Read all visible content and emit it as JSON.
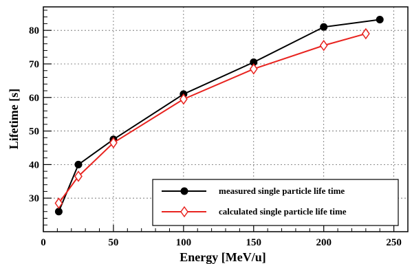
{
  "chart_data": {
    "type": "line",
    "xlabel": "Energy [MeV/u]",
    "ylabel": "Lifetime [s]",
    "xlim": [
      0,
      260
    ],
    "ylim": [
      20,
      87
    ],
    "xticks": [
      0,
      50,
      100,
      150,
      200,
      250
    ],
    "yticks": [
      30,
      40,
      50,
      60,
      70,
      80
    ],
    "grid": true,
    "legend_position": "bottom-right",
    "series": [
      {
        "name": "measured single particle life time",
        "color": "#000000",
        "marker": "filled-circle",
        "x": [
          11,
          25,
          50,
          100,
          150,
          200,
          240
        ],
        "y": [
          26,
          40,
          47.5,
          61,
          70.5,
          81,
          83.2
        ]
      },
      {
        "name": "calculated single particle life time",
        "color": "#e8231f",
        "marker": "open-diamond",
        "x": [
          11,
          25,
          50,
          100,
          150,
          200,
          230
        ],
        "y": [
          28.5,
          36.5,
          46.5,
          59.5,
          68.5,
          75.5,
          79
        ]
      }
    ]
  }
}
